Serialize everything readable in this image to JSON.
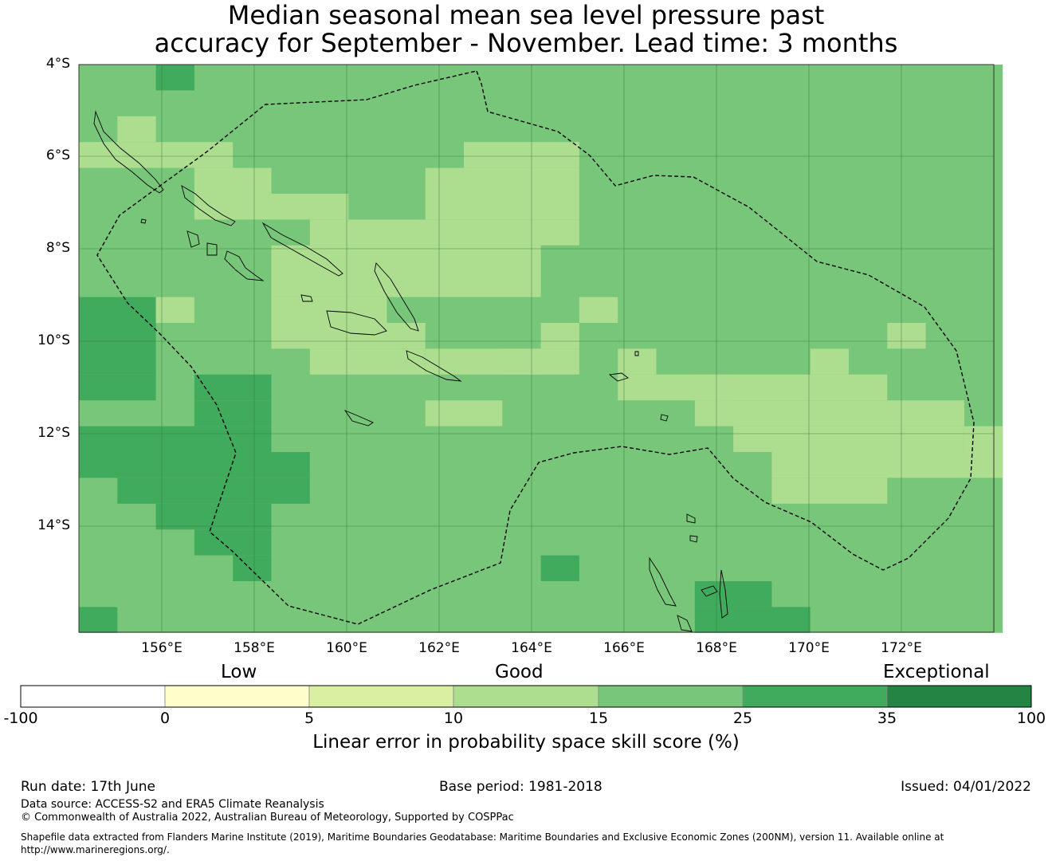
{
  "title": {
    "line1": "Median seasonal mean sea level pressure past",
    "line2": "accuracy for September - November. Lead time: 3 months"
  },
  "map": {
    "lat_labels": [
      "4°S",
      "6°S",
      "8°S",
      "10°S",
      "12°S",
      "14°S"
    ],
    "lon_labels": [
      "156°E",
      "158°E",
      "160°E",
      "162°E",
      "164°E",
      "166°E",
      "168°E",
      "170°E",
      "172°E"
    ],
    "base_color": "#78c679",
    "eez_boundary": "dashed"
  },
  "legend": {
    "categories": [
      "Low",
      "Good",
      "Exceptional"
    ],
    "ticks": [
      "-100",
      "0",
      "5",
      "10",
      "15",
      "25",
      "35",
      "100"
    ],
    "colors": [
      "#ffffff",
      "#ffffcc",
      "#d9f0a3",
      "#addd8e",
      "#78c679",
      "#41ab5d",
      "#238443"
    ],
    "label": "Linear error in probability space skill score (%)"
  },
  "footer": {
    "run_date": "Run date: 17th June",
    "base_period": "Base period: 1981-2018",
    "issued": "Issued: 04/01/2022",
    "data_source": "Data source: ACCESS-S2 and ERA5 Climate Reanalysis",
    "copyright": "© Commonwealth of Australia 2022, Australian Bureau of Meteorology, Supported by COSPPac",
    "shapefile": "Shapefile data extracted from Flanders Marine Institute (2019), Maritime Boundaries Geodatabase: Maritime Boundaries and Exclusive Economic Zones (200NM), version 11. Available online at http://www.marineregions.org/."
  }
}
